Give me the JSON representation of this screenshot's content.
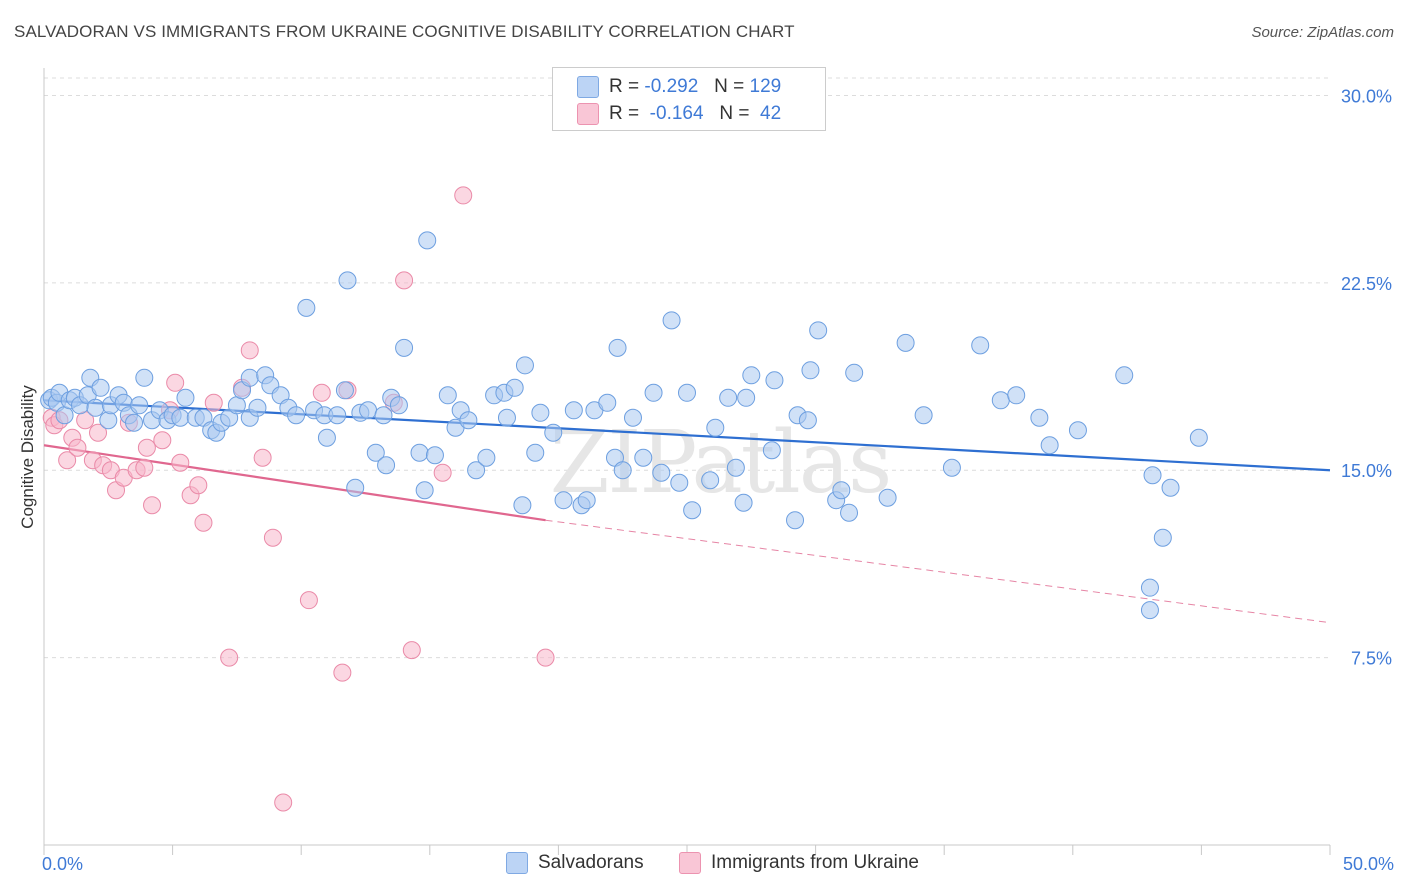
{
  "header": {
    "title": "SALVADORAN VS IMMIGRANTS FROM UKRAINE COGNITIVE DISABILITY CORRELATION CHART",
    "source": "Source: ZipAtlas.com"
  },
  "legend_top": {
    "rows": [
      {
        "r_label": "R =",
        "r_value": "-0.292",
        "n_label": "N =",
        "n_value": "129"
      },
      {
        "r_label": "R =",
        "r_value": "-0.164",
        "n_label": "N =",
        "n_value": " 42"
      }
    ]
  },
  "legend_bottom": {
    "items": [
      "Salvadorans",
      "Immigrants from Ukraine"
    ]
  },
  "watermark": "ZIPatlas",
  "colors": {
    "blue_fill": "#a9c8f0",
    "blue_stroke": "#6d9fe0",
    "blue_line": "#2e6fd1",
    "pink_fill": "#f7b6ca",
    "pink_stroke": "#ea8aa8",
    "pink_line": "#e0678f",
    "tick_label": "#3f7ad6",
    "grid": "#dcdcdc"
  },
  "chart_data": {
    "type": "scatter",
    "ylabel": "Cognitive Disability",
    "xlabel": "",
    "xlim": [
      0,
      50
    ],
    "ylim": [
      0,
      30.7
    ],
    "x_tick_labels": [
      "0.0%",
      "50.0%"
    ],
    "y_ticks": [
      7.5,
      15.0,
      22.5,
      30.0
    ],
    "y_tick_labels": [
      "7.5%",
      "15.0%",
      "22.5%",
      "30.0%"
    ],
    "grid": true,
    "legend_placement": "top-center",
    "series": [
      {
        "name": "Salvadorans",
        "points": [
          [
            0.2,
            17.8
          ],
          [
            0.3,
            17.9
          ],
          [
            0.5,
            17.7
          ],
          [
            0.6,
            18.1
          ],
          [
            0.8,
            17.2
          ],
          [
            1.0,
            17.8
          ],
          [
            1.2,
            17.9
          ],
          [
            1.4,
            17.6
          ],
          [
            1.7,
            18.0
          ],
          [
            1.8,
            18.7
          ],
          [
            2.0,
            17.5
          ],
          [
            2.2,
            18.3
          ],
          [
            2.5,
            17.0
          ],
          [
            2.6,
            17.6
          ],
          [
            2.9,
            18.0
          ],
          [
            3.1,
            17.7
          ],
          [
            3.3,
            17.2
          ],
          [
            3.5,
            16.9
          ],
          [
            3.7,
            17.6
          ],
          [
            3.9,
            18.7
          ],
          [
            4.2,
            17.0
          ],
          [
            4.5,
            17.4
          ],
          [
            4.8,
            17.0
          ],
          [
            5.0,
            17.2
          ],
          [
            5.3,
            17.1
          ],
          [
            5.5,
            17.9
          ],
          [
            5.9,
            17.1
          ],
          [
            6.2,
            17.1
          ],
          [
            6.5,
            16.6
          ],
          [
            6.7,
            16.5
          ],
          [
            6.9,
            16.9
          ],
          [
            7.2,
            17.1
          ],
          [
            7.5,
            17.6
          ],
          [
            7.7,
            18.2
          ],
          [
            8.0,
            18.7
          ],
          [
            8.0,
            17.1
          ],
          [
            8.3,
            17.5
          ],
          [
            8.6,
            18.8
          ],
          [
            8.8,
            18.4
          ],
          [
            9.2,
            18.0
          ],
          [
            9.5,
            17.5
          ],
          [
            9.8,
            17.2
          ],
          [
            10.2,
            21.5
          ],
          [
            10.5,
            17.4
          ],
          [
            10.9,
            17.2
          ],
          [
            11.0,
            16.3
          ],
          [
            11.4,
            17.2
          ],
          [
            11.7,
            18.2
          ],
          [
            11.8,
            22.6
          ],
          [
            12.1,
            14.3
          ],
          [
            12.3,
            17.3
          ],
          [
            12.6,
            17.4
          ],
          [
            12.9,
            15.7
          ],
          [
            13.2,
            17.2
          ],
          [
            13.3,
            15.2
          ],
          [
            13.5,
            17.9
          ],
          [
            13.8,
            17.6
          ],
          [
            14.0,
            19.9
          ],
          [
            14.6,
            15.7
          ],
          [
            14.8,
            14.2
          ],
          [
            14.9,
            24.2
          ],
          [
            15.2,
            15.6
          ],
          [
            15.7,
            18.0
          ],
          [
            16.0,
            16.7
          ],
          [
            16.2,
            17.4
          ],
          [
            16.5,
            17.0
          ],
          [
            16.8,
            15.0
          ],
          [
            17.2,
            15.5
          ],
          [
            17.5,
            18.0
          ],
          [
            17.9,
            18.1
          ],
          [
            18.0,
            17.1
          ],
          [
            18.3,
            18.3
          ],
          [
            18.6,
            13.6
          ],
          [
            18.7,
            19.2
          ],
          [
            19.1,
            15.7
          ],
          [
            19.3,
            17.3
          ],
          [
            19.8,
            16.5
          ],
          [
            20.2,
            13.8
          ],
          [
            20.6,
            17.4
          ],
          [
            20.9,
            13.6
          ],
          [
            21.1,
            13.8
          ],
          [
            21.4,
            17.4
          ],
          [
            21.9,
            17.7
          ],
          [
            22.2,
            15.5
          ],
          [
            22.5,
            15.0
          ],
          [
            22.9,
            17.1
          ],
          [
            22.3,
            19.9
          ],
          [
            23.3,
            15.5
          ],
          [
            23.7,
            18.1
          ],
          [
            24.0,
            14.9
          ],
          [
            24.4,
            21.0
          ],
          [
            24.7,
            14.5
          ],
          [
            25.0,
            18.1
          ],
          [
            25.2,
            13.4
          ],
          [
            25.9,
            14.6
          ],
          [
            26.1,
            16.7
          ],
          [
            26.6,
            17.9
          ],
          [
            26.9,
            15.1
          ],
          [
            27.2,
            13.7
          ],
          [
            27.3,
            17.9
          ],
          [
            27.5,
            18.8
          ],
          [
            28.3,
            15.8
          ],
          [
            28.4,
            18.6
          ],
          [
            29.2,
            13.0
          ],
          [
            29.3,
            17.2
          ],
          [
            29.7,
            17.0
          ],
          [
            29.8,
            19.0
          ],
          [
            30.1,
            20.6
          ],
          [
            30.8,
            13.8
          ],
          [
            31.0,
            14.2
          ],
          [
            31.3,
            13.3
          ],
          [
            31.5,
            18.9
          ],
          [
            32.8,
            13.9
          ],
          [
            33.5,
            20.1
          ],
          [
            34.2,
            17.2
          ],
          [
            35.3,
            15.1
          ],
          [
            36.4,
            20.0
          ],
          [
            37.2,
            17.8
          ],
          [
            37.8,
            18.0
          ],
          [
            40.2,
            16.6
          ],
          [
            42.0,
            18.8
          ],
          [
            43.1,
            14.8
          ],
          [
            43.8,
            14.3
          ],
          [
            44.9,
            16.3
          ],
          [
            43.0,
            10.3
          ],
          [
            43.5,
            12.3
          ],
          [
            38.7,
            17.1
          ],
          [
            39.1,
            16.0
          ],
          [
            43.0,
            9.4
          ]
        ],
        "trend": [
          [
            0,
            17.8
          ],
          [
            50,
            15.0
          ]
        ]
      },
      {
        "name": "Immigrants from Ukraine",
        "points": [
          [
            0.3,
            17.1
          ],
          [
            0.4,
            16.8
          ],
          [
            0.6,
            17.0
          ],
          [
            0.9,
            15.4
          ],
          [
            1.1,
            16.3
          ],
          [
            1.3,
            15.9
          ],
          [
            1.6,
            17.0
          ],
          [
            1.9,
            15.4
          ],
          [
            2.1,
            16.5
          ],
          [
            2.3,
            15.2
          ],
          [
            2.6,
            15.0
          ],
          [
            2.8,
            14.2
          ],
          [
            3.1,
            14.7
          ],
          [
            3.3,
            16.9
          ],
          [
            3.6,
            15.0
          ],
          [
            3.9,
            15.1
          ],
          [
            4.0,
            15.9
          ],
          [
            4.2,
            13.6
          ],
          [
            4.6,
            16.2
          ],
          [
            4.9,
            17.4
          ],
          [
            5.1,
            18.5
          ],
          [
            5.3,
            15.3
          ],
          [
            5.7,
            14.0
          ],
          [
            6.0,
            14.4
          ],
          [
            6.2,
            12.9
          ],
          [
            6.6,
            17.7
          ],
          [
            7.2,
            7.5
          ],
          [
            7.7,
            18.3
          ],
          [
            8.0,
            19.8
          ],
          [
            8.5,
            15.5
          ],
          [
            8.9,
            12.3
          ],
          [
            9.3,
            1.7
          ],
          [
            10.3,
            9.8
          ],
          [
            10.8,
            18.1
          ],
          [
            11.6,
            6.9
          ],
          [
            11.8,
            18.2
          ],
          [
            13.6,
            17.7
          ],
          [
            14.0,
            22.6
          ],
          [
            14.3,
            7.8
          ],
          [
            15.5,
            14.9
          ],
          [
            16.3,
            26.0
          ],
          [
            19.5,
            7.5
          ]
        ],
        "trend_solid": [
          [
            0,
            16.0
          ],
          [
            19.5,
            13.0
          ]
        ],
        "trend_dashed": [
          [
            19.5,
            13.0
          ],
          [
            50,
            8.9
          ]
        ]
      }
    ]
  }
}
